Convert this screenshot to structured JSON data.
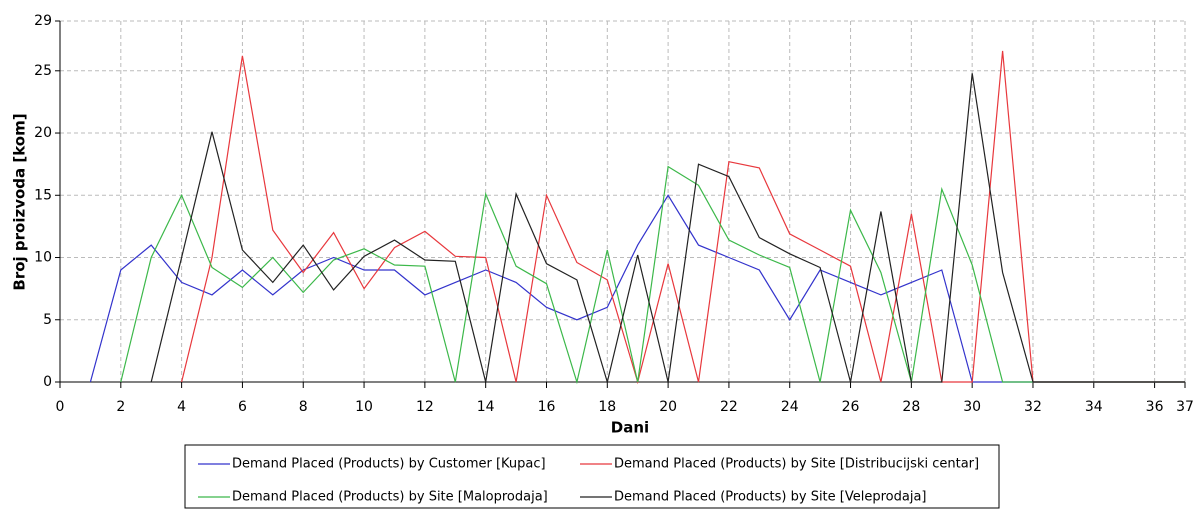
{
  "chart_data": {
    "type": "line",
    "x_label": "Dani",
    "y_label": "Broj proizvoda [kom]",
    "x": [
      0,
      1,
      2,
      3,
      4,
      5,
      6,
      7,
      8,
      9,
      10,
      11,
      12,
      13,
      14,
      15,
      16,
      17,
      18,
      19,
      20,
      21,
      22,
      23,
      24,
      25,
      26,
      27,
      28,
      29,
      30,
      31,
      32,
      33,
      34,
      35,
      36,
      37
    ],
    "series": [
      {
        "name": "Demand Placed (Products) by Customer [Kupac]",
        "color": "#3333cc",
        "values": [
          null,
          0,
          9,
          11,
          8,
          7,
          9,
          7,
          9,
          10,
          9,
          9,
          7,
          8,
          9,
          8,
          6,
          5,
          6,
          11,
          15,
          11,
          10,
          9,
          5,
          9,
          8,
          7,
          8,
          9,
          0,
          0,
          0,
          0,
          0,
          0,
          0,
          0
        ]
      },
      {
        "name": "Demand Placed (Products) by Site [Distribucijski centar]",
        "color": "#e8383d",
        "values": [
          null,
          null,
          null,
          null,
          0,
          10,
          26.2,
          12.2,
          8.8,
          12,
          7.5,
          10.8,
          12.1,
          10.1,
          10,
          0,
          15,
          9.6,
          8.2,
          0,
          9.5,
          0,
          17.7,
          17.2,
          11.9,
          10.6,
          9.3,
          0,
          13.5,
          0,
          0,
          26.6,
          0,
          0,
          0,
          0,
          0,
          0
        ]
      },
      {
        "name": "Demand Placed (Products) by Site [Maloprodaja]",
        "color": "#3cb84a",
        "values": [
          null,
          null,
          0,
          10,
          15,
          9.2,
          7.6,
          10,
          7.2,
          9.8,
          10.7,
          9.4,
          9.3,
          0,
          15.1,
          9.3,
          7.9,
          0,
          10.6,
          0,
          17.3,
          15.8,
          11.4,
          10.2,
          9.2,
          0,
          13.8,
          8.8,
          0,
          15.5,
          9.4,
          0,
          0,
          0,
          0,
          0,
          0,
          0
        ]
      },
      {
        "name": "Demand Placed (Products) by Site [Veleprodaja]",
        "color": "#222222",
        "values": [
          null,
          null,
          null,
          0,
          10,
          20.1,
          10.6,
          8,
          11,
          7.4,
          10.1,
          11.4,
          9.8,
          9.7,
          0,
          15.1,
          9.5,
          8.2,
          0,
          10.2,
          0,
          17.5,
          16.5,
          11.6,
          10.3,
          9.2,
          0,
          13.7,
          0,
          0,
          24.8,
          8.8,
          0,
          0,
          0,
          0,
          0,
          0
        ]
      }
    ],
    "xlim": [
      0,
      37
    ],
    "xticks": [
      0,
      2,
      4,
      6,
      8,
      10,
      12,
      14,
      16,
      18,
      20,
      22,
      24,
      26,
      28,
      30,
      32,
      34,
      36,
      37
    ],
    "ylim": [
      0,
      29
    ],
    "yticks": [
      0,
      5,
      10,
      15,
      20,
      25,
      29
    ],
    "grid": true
  }
}
